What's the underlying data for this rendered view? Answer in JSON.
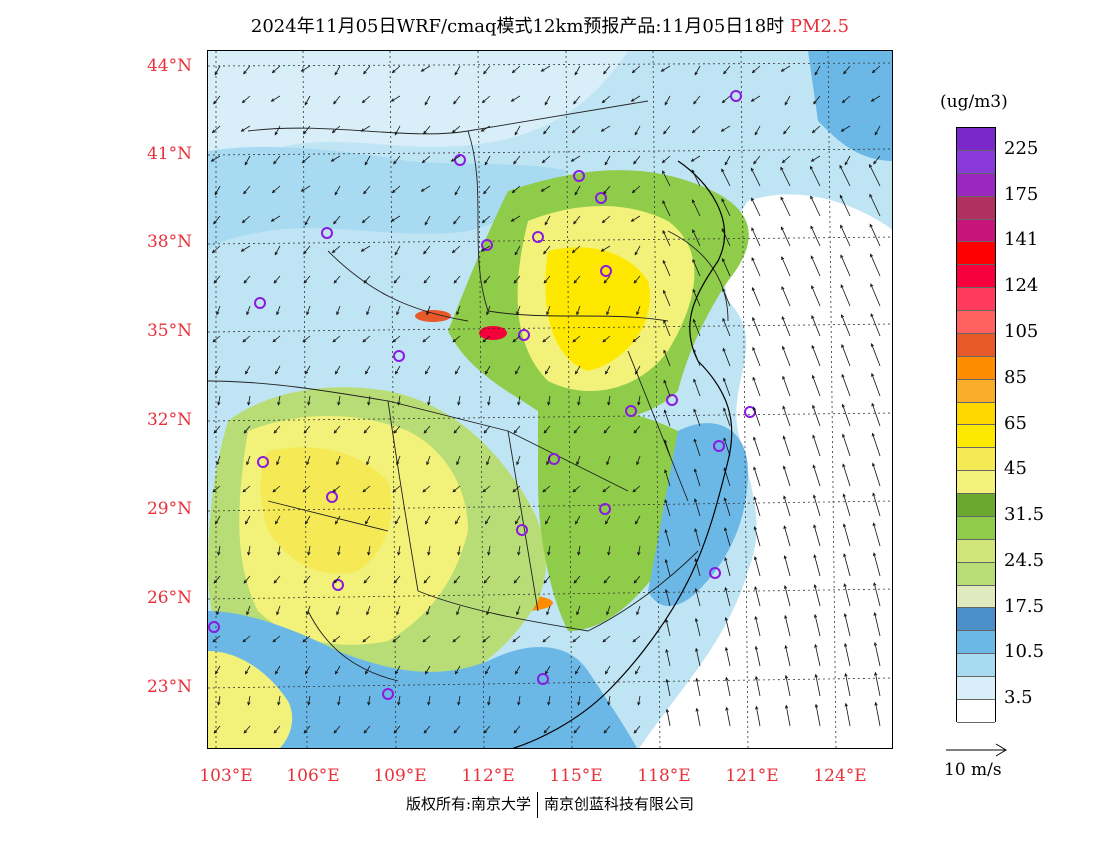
{
  "title": {
    "main": "2024年11月05日WRF/cmaq模式12km预报产品:11月05日18时",
    "product": "PM2.5"
  },
  "axes": {
    "lat_labels": [
      "44°N",
      "41°N",
      "38°N",
      "35°N",
      "32°N",
      "29°N",
      "26°N",
      "23°N"
    ],
    "lon_labels": [
      "103°E",
      "106°E",
      "109°E",
      "112°E",
      "115°E",
      "118°E",
      "121°E",
      "124°E"
    ]
  },
  "legend": {
    "unit": "(ug/m3)",
    "levels": [
      "3.5",
      "10.5",
      "17.5",
      "24.5",
      "31.5",
      "45",
      "65",
      "85",
      "105",
      "124",
      "141",
      "175",
      "225"
    ],
    "colors": [
      "#ffffff",
      "#d8eef8",
      "#a8dbf2",
      "#6bb8e6",
      "#4a8fc8",
      "#dfebbf",
      "#b9dd76",
      "#d0e67a",
      "#8fcc4a",
      "#6aa82e",
      "#f2f27a",
      "#f5ea55",
      "#ffe800",
      "#ffd800",
      "#f7ad2a",
      "#ff8c00",
      "#e8592a",
      "#ff6060",
      "#ff3a5a",
      "#f5003a",
      "#ff0000",
      "#c8147a",
      "#b03060",
      "#9a28c0",
      "#8a3ad8",
      "#7a28c8"
    ]
  },
  "wind_reference": {
    "label": "10 m/s"
  },
  "footer": {
    "copyright": "版权所有:南京大学",
    "company": "南京创蓝科技有限公司"
  }
}
